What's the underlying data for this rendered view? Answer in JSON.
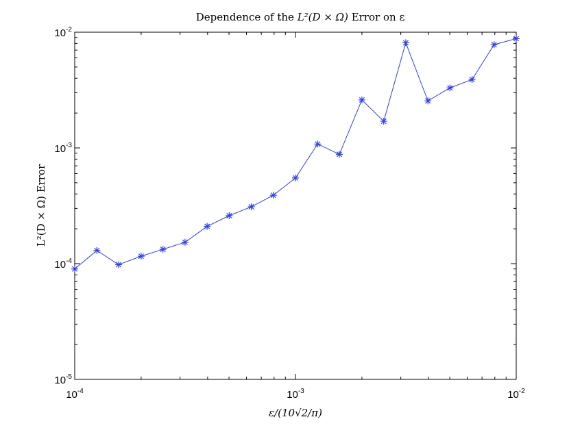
{
  "chart_data": {
    "type": "line",
    "title": {
      "prefix": "Dependence of the ",
      "math": "L²(D × Ω)",
      "suffix": " Error on ε"
    },
    "xlabel": "ε/(10√2/π)",
    "ylabel": "L²(D × Ω) Error",
    "xscale": "log",
    "yscale": "log",
    "xlim": [
      0.0001,
      0.01
    ],
    "ylim": [
      1e-05,
      0.01
    ],
    "grid": false,
    "x_ticks": [
      {
        "base": "10",
        "exp": "-4",
        "value": 0.0001
      },
      {
        "base": "10",
        "exp": "-3",
        "value": 0.001
      },
      {
        "base": "10",
        "exp": "-2",
        "value": 0.01
      }
    ],
    "y_ticks": [
      {
        "base": "10",
        "exp": "-5",
        "value": 1e-05
      },
      {
        "base": "10",
        "exp": "-4",
        "value": 0.0001
      },
      {
        "base": "10",
        "exp": "-3",
        "value": 0.001
      },
      {
        "base": "10",
        "exp": "-2",
        "value": 0.01
      }
    ],
    "series": [
      {
        "color": "#2b3ff5",
        "marker": "asterisk",
        "x": [
          0.0001,
          0.000126,
          0.000158,
          0.0002,
          0.000251,
          0.000316,
          0.000398,
          0.000501,
          0.000631,
          0.000794,
          0.001,
          0.00126,
          0.00158,
          0.002,
          0.00251,
          0.00316,
          0.00398,
          0.00501,
          0.00631,
          0.00794,
          0.01
        ],
        "y": [
          9e-05,
          0.00013,
          9.8e-05,
          0.000116,
          0.000133,
          0.000153,
          0.00021,
          0.00026,
          0.00031,
          0.00039,
          0.00055,
          0.00108,
          0.00088,
          0.0026,
          0.0017,
          0.0081,
          0.00255,
          0.0033,
          0.0039,
          0.0078,
          0.0088
        ]
      }
    ]
  }
}
